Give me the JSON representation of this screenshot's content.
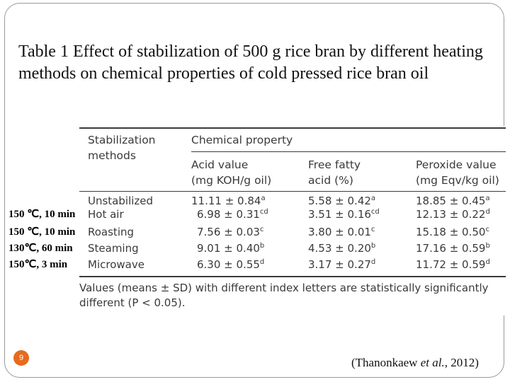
{
  "title": "Table 1 Effect of stabilization of 500 g rice bran by different heating methods on chemical properties of cold pressed rice bran oil",
  "table": {
    "col1_header": [
      "Stabilization",
      "methods"
    ],
    "group_header": "Chemical property",
    "sub_headers": [
      [
        "Acid value",
        "(mg KOH/g oil)"
      ],
      [
        "Free fatty",
        "acid (%)"
      ],
      [
        "Peroxide value",
        "(mg Eqv/kg oil)"
      ]
    ],
    "rows": [
      {
        "method": "Unstabilized",
        "acid": "11.11 ± 0.84",
        "acid_sup": "a",
        "ffa": "5.58 ± 0.42",
        "ffa_sup": "a",
        "pv": "18.85 ± 0.45",
        "pv_sup": "a"
      },
      {
        "method": "Hot air",
        "acid": "6.98 ± 0.31",
        "acid_sup": "cd",
        "ffa": "3.51 ± 0.16",
        "ffa_sup": "cd",
        "pv": "12.13 ± 0.22",
        "pv_sup": "d"
      },
      {
        "method": "Roasting",
        "acid": "7.56 ± 0.03",
        "acid_sup": "c",
        "ffa": "3.80 ± 0.01",
        "ffa_sup": "c",
        "pv": "15.18 ± 0.50",
        "pv_sup": "c"
      },
      {
        "method": "Steaming",
        "acid": "9.01 ± 0.40",
        "acid_sup": "b",
        "ffa": "4.53 ± 0.20",
        "ffa_sup": "b",
        "pv": "17.16 ± 0.59",
        "pv_sup": "b"
      },
      {
        "method": "Microwave",
        "acid": "6.30 ± 0.55",
        "acid_sup": "d",
        "ffa": "3.17 ± 0.27",
        "ffa_sup": "d",
        "pv": "11.72 ± 0.59",
        "pv_sup": "d"
      }
    ],
    "note_lines": [
      "Values (means ± SD) with different index letters are statistically significantly",
      "different (P < 0.05)."
    ]
  },
  "conditions": [
    "150 ℃, 10 min",
    "150 ℃, 10 min",
    "130℃, 60 min",
    "150℃, 3 min"
  ],
  "slide_number": "9",
  "citation": {
    "before": "(Thanonkaew ",
    "italic": "et al.,",
    "after": " 2012)"
  }
}
